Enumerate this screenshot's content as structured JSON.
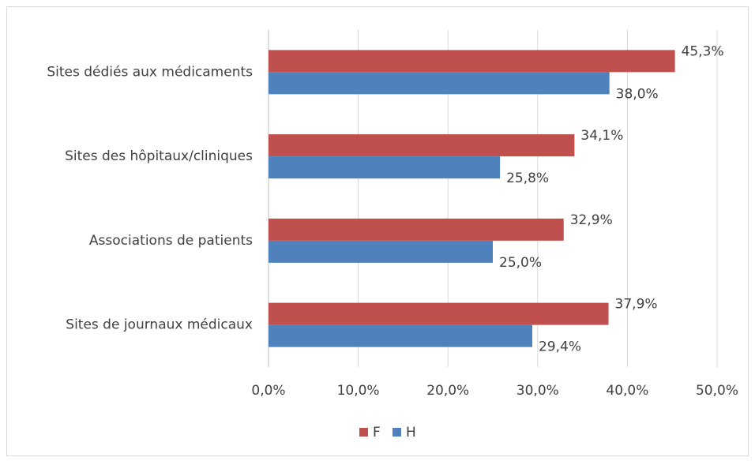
{
  "chart_data": {
    "type": "bar",
    "orientation": "horizontal",
    "categories": [
      "Sites dédiés aux médicaments",
      "Sites des hôpitaux/cliniques",
      "Associations de patients",
      "Sites de journaux médicaux"
    ],
    "series": [
      {
        "name": "F",
        "color": "#c0504d",
        "values": [
          45.3,
          34.1,
          32.9,
          37.9
        ],
        "value_labels": [
          "45,3%",
          "34,1%",
          "32,9%",
          "37,9%"
        ]
      },
      {
        "name": "H",
        "color": "#4f81bd",
        "values": [
          38.0,
          25.8,
          25.0,
          29.4
        ],
        "value_labels": [
          "38,0%",
          "25,8%",
          "25,0%",
          "29,4%"
        ]
      }
    ],
    "xlim": [
      0,
      50
    ],
    "xticks": [
      {
        "value": 0,
        "label": "0,0%"
      },
      {
        "value": 10,
        "label": "10,0%"
      },
      {
        "value": 20,
        "label": "20,0%"
      },
      {
        "value": 30,
        "label": "30,0%"
      },
      {
        "value": 40,
        "label": "40,0%"
      },
      {
        "value": 50,
        "label": "50,0%"
      }
    ],
    "grid": true,
    "legend": "bottom"
  }
}
